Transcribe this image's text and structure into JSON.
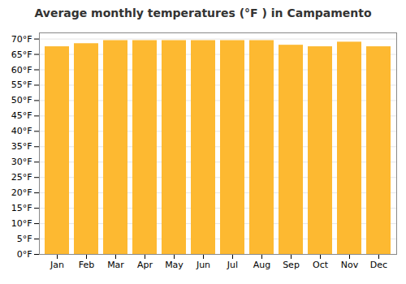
{
  "chart_data": {
    "type": "bar",
    "title": "Average monthly temperatures (°F ) in Campamento",
    "categories": [
      "Jan",
      "Feb",
      "Mar",
      "Apr",
      "May",
      "Jun",
      "Jul",
      "Aug",
      "Sep",
      "Oct",
      "Nov",
      "Dec"
    ],
    "values": [
      67.5,
      68.5,
      69.5,
      69.5,
      69.5,
      69.5,
      69.5,
      69.5,
      68.0,
      67.5,
      69.0,
      67.5
    ],
    "color": "#FDB931",
    "ylim": [
      0,
      72
    ],
    "yticks": [
      {
        "value": 0,
        "label": "0°F"
      },
      {
        "value": 5,
        "label": "5°F"
      },
      {
        "value": 10,
        "label": "10°F"
      },
      {
        "value": 15,
        "label": "15°F"
      },
      {
        "value": 20,
        "label": "20°F"
      },
      {
        "value": 25,
        "label": "25°F"
      },
      {
        "value": 30,
        "label": "30°F"
      },
      {
        "value": 35,
        "label": "35°F"
      },
      {
        "value": 40,
        "label": "40°F"
      },
      {
        "value": 45,
        "label": "45°F"
      },
      {
        "value": 50,
        "label": "50°F"
      },
      {
        "value": 55,
        "label": "55°F"
      },
      {
        "value": 60,
        "label": "60°F"
      },
      {
        "value": 65,
        "label": "65°F"
      },
      {
        "value": 70,
        "label": "70°F"
      }
    ],
    "grid": true
  }
}
